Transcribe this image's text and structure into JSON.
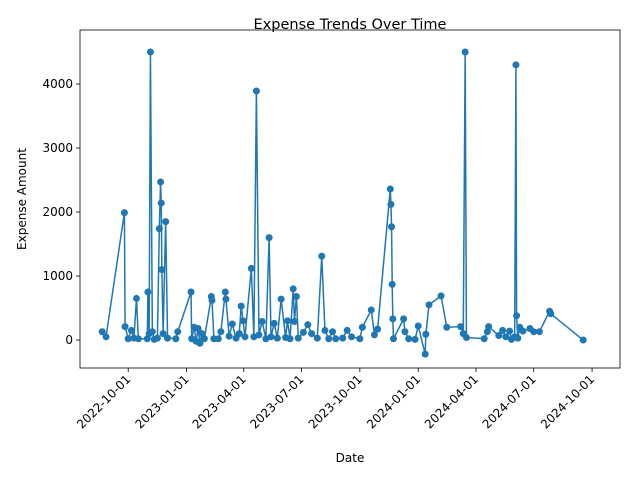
{
  "chart_data": {
    "type": "line",
    "title": "Expense Trends Over Time",
    "xlabel": "Date",
    "ylabel": "Expense Amount",
    "x": [
      "2022-08-21",
      "2022-08-27",
      "2022-09-25",
      "2022-09-26",
      "2022-10-01",
      "2022-10-06",
      "2022-10-10",
      "2022-10-14",
      "2022-10-17",
      "2022-10-31",
      "2022-11-01",
      "2022-11-03",
      "2022-11-05",
      "2022-11-08",
      "2022-11-11",
      "2022-11-16",
      "2022-11-19",
      "2022-11-21",
      "2022-11-22",
      "2022-11-23",
      "2022-11-25",
      "2022-11-29",
      "2022-12-02",
      "2022-12-15",
      "2022-12-18",
      "2023-01-08",
      "2023-01-09",
      "2023-01-13",
      "2023-01-16",
      "2023-01-19",
      "2023-01-22",
      "2023-01-25",
      "2023-01-29",
      "2023-02-09",
      "2023-02-10",
      "2023-02-13",
      "2023-02-20",
      "2023-02-24",
      "2023-03-03",
      "2023-03-04",
      "2023-03-09",
      "2023-03-14",
      "2023-03-20",
      "2023-03-25",
      "2023-03-28",
      "2023-03-31",
      "2023-04-03",
      "2023-04-13",
      "2023-04-17",
      "2023-04-21",
      "2023-04-25",
      "2023-04-30",
      "2023-05-06",
      "2023-05-11",
      "2023-05-14",
      "2023-05-19",
      "2023-05-24",
      "2023-05-30",
      "2023-06-06",
      "2023-06-09",
      "2023-06-13",
      "2023-06-18",
      "2023-06-20",
      "2023-06-23",
      "2023-06-26",
      "2023-07-04",
      "2023-07-11",
      "2023-07-17",
      "2023-07-26",
      "2023-08-02",
      "2023-08-07",
      "2023-08-13",
      "2023-08-19",
      "2023-08-24",
      "2023-09-04",
      "2023-09-11",
      "2023-09-18",
      "2023-10-01",
      "2023-10-05",
      "2023-10-19",
      "2023-10-24",
      "2023-10-29",
      "2023-11-18",
      "2023-11-19",
      "2023-11-20",
      "2023-11-21",
      "2023-11-22",
      "2023-11-23",
      "2023-12-09",
      "2023-12-11",
      "2023-12-17",
      "2023-12-27",
      "2024-01-01",
      "2024-01-12",
      "2024-01-13",
      "2024-01-18",
      "2024-02-06",
      "2024-02-15",
      "2024-03-08",
      "2024-03-12",
      "2024-03-15",
      "2024-03-17",
      "2024-04-14",
      "2024-04-19",
      "2024-04-21",
      "2024-05-07",
      "2024-05-13",
      "2024-05-18",
      "2024-05-24",
      "2024-05-27",
      "2024-06-01",
      "2024-06-03",
      "2024-06-04",
      "2024-06-06",
      "2024-06-09",
      "2024-06-14",
      "2024-06-25",
      "2024-07-01",
      "2024-07-10",
      "2024-07-26",
      "2024-07-28",
      "2024-09-17"
    ],
    "series": [
      {
        "name": "Expense Amount",
        "color": "#1f77b4",
        "values": [
          130,
          50,
          1990,
          210,
          20,
          150,
          30,
          650,
          20,
          20,
          750,
          100,
          4500,
          130,
          10,
          30,
          1740,
          2470,
          2140,
          1100,
          100,
          1850,
          30,
          20,
          130,
          750,
          20,
          200,
          -20,
          180,
          -50,
          100,
          20,
          680,
          620,
          20,
          20,
          130,
          750,
          640,
          60,
          250,
          30,
          100,
          530,
          300,
          50,
          1120,
          50,
          3890,
          80,
          290,
          20,
          1600,
          50,
          260,
          30,
          640,
          40,
          300,
          20,
          800,
          290,
          680,
          30,
          120,
          240,
          100,
          30,
          1310,
          150,
          20,
          130,
          20,
          30,
          150,
          50,
          20,
          200,
          470,
          80,
          170,
          2360,
          2120,
          1770,
          870,
          330,
          20,
          330,
          130,
          20,
          10,
          220,
          -220,
          90,
          550,
          690,
          200,
          210,
          100,
          4500,
          40,
          20,
          130,
          210,
          70,
          150,
          50,
          140,
          10,
          50,
          4300,
          380,
          30,
          200,
          140,
          180,
          130,
          130,
          450,
          410,
          0
        ]
      }
    ],
    "xlim": [
      "2022-07-17",
      "2024-11-14"
    ],
    "xticks": [
      "2022-10-01",
      "2023-01-01",
      "2023-04-01",
      "2023-07-01",
      "2023-10-01",
      "2024-01-01",
      "2024-04-01",
      "2024-07-01",
      "2024-10-01"
    ],
    "ylim": [
      -437,
      4844
    ],
    "yticks": [
      0,
      1000,
      2000,
      3000,
      4000
    ]
  }
}
